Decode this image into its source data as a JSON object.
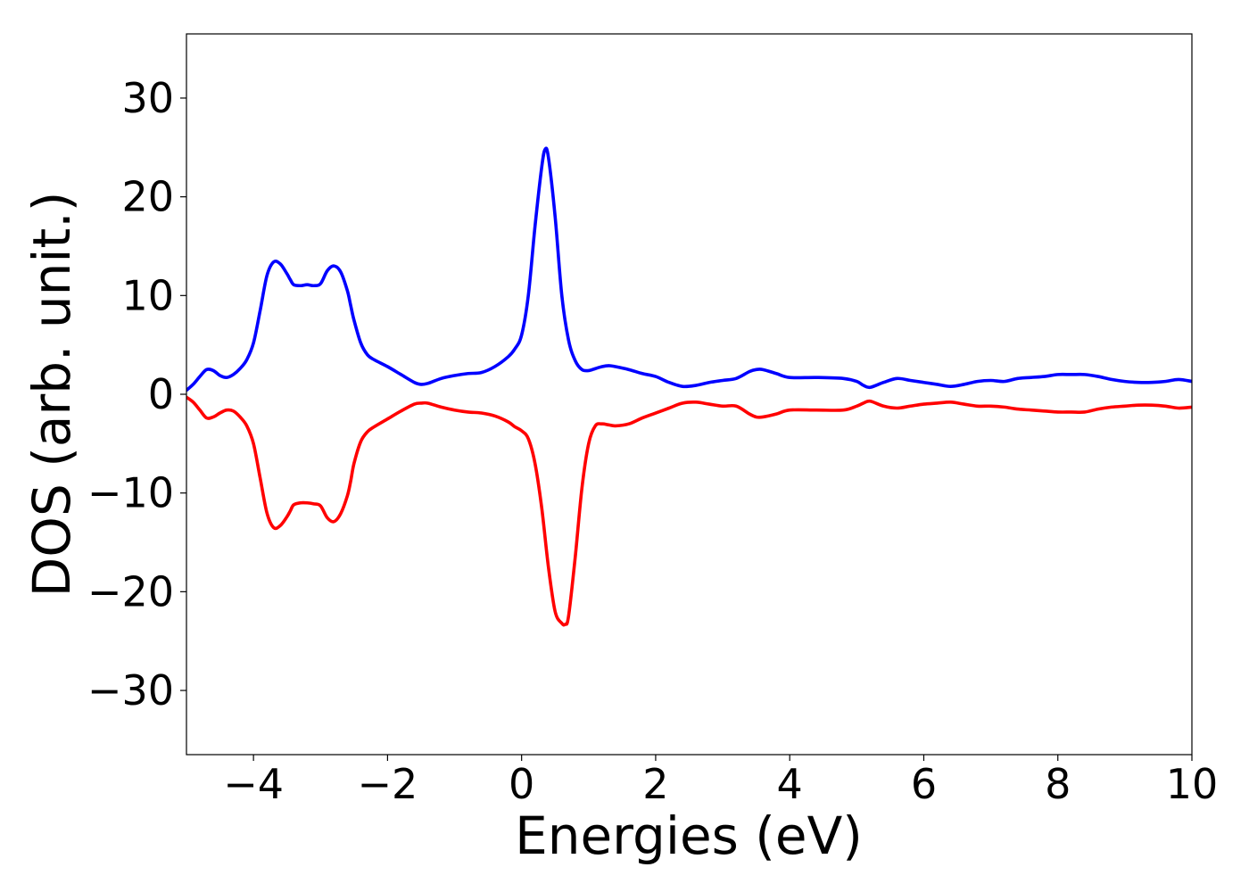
{
  "chart_data": {
    "type": "line",
    "title": "",
    "xlabel": "Energies (eV)",
    "ylabel": "DOS (arb. unit.)",
    "xlim": [
      -5,
      10
    ],
    "ylim": [
      -36.5,
      36.5
    ],
    "grid": false,
    "x_ticks": [
      -4,
      -2,
      0,
      2,
      4,
      6,
      8,
      10
    ],
    "x_tick_labels": [
      "−4",
      "−2",
      "0",
      "2",
      "4",
      "6",
      "8",
      "10"
    ],
    "y_ticks": [
      30,
      20,
      10,
      0,
      -10,
      -20,
      -30
    ],
    "y_tick_labels": [
      "30",
      "20",
      "10",
      "0",
      "−10",
      "−20",
      "−30"
    ],
    "series": [
      {
        "color": "#0000ff",
        "x": [
          -5.0,
          -4.9,
          -4.8,
          -4.7,
          -4.6,
          -4.5,
          -4.4,
          -4.3,
          -4.2,
          -4.1,
          -4.0,
          -3.9,
          -3.8,
          -3.7,
          -3.6,
          -3.5,
          -3.45,
          -3.4,
          -3.3,
          -3.2,
          -3.1,
          -3.0,
          -2.9,
          -2.8,
          -2.7,
          -2.6,
          -2.55,
          -2.5,
          -2.4,
          -2.3,
          -2.2,
          -2.0,
          -1.8,
          -1.6,
          -1.5,
          -1.4,
          -1.2,
          -1.0,
          -0.8,
          -0.6,
          -0.4,
          -0.2,
          -0.1,
          0.0,
          0.1,
          0.2,
          0.3,
          0.35,
          0.4,
          0.5,
          0.6,
          0.7,
          0.8,
          0.9,
          1.0,
          1.1,
          1.2,
          1.3,
          1.4,
          1.6,
          1.8,
          2.0,
          2.2,
          2.4,
          2.6,
          2.8,
          3.0,
          3.2,
          3.4,
          3.5,
          3.6,
          3.8,
          4.0,
          4.4,
          4.8,
          5.0,
          5.1,
          5.2,
          5.4,
          5.6,
          5.8,
          6.0,
          6.2,
          6.4,
          6.6,
          6.8,
          7.0,
          7.2,
          7.4,
          7.6,
          7.8,
          8.0,
          8.2,
          8.4,
          8.6,
          8.8,
          9.0,
          9.2,
          9.4,
          9.6,
          9.8,
          10.0
        ],
        "y": [
          0.4,
          1.0,
          1.8,
          2.5,
          2.4,
          1.9,
          1.7,
          2.0,
          2.6,
          3.5,
          5.2,
          8.5,
          12.0,
          13.4,
          13.2,
          12.2,
          11.6,
          11.1,
          11.0,
          11.1,
          11.0,
          11.2,
          12.5,
          13.0,
          12.4,
          10.5,
          9.0,
          7.5,
          5.2,
          4.0,
          3.5,
          2.8,
          2.0,
          1.2,
          1.0,
          1.1,
          1.6,
          1.9,
          2.1,
          2.2,
          2.8,
          3.8,
          4.6,
          6.0,
          10.0,
          17.0,
          23.0,
          24.8,
          24.0,
          18.0,
          10.0,
          5.5,
          3.4,
          2.5,
          2.4,
          2.6,
          2.8,
          2.9,
          2.8,
          2.5,
          2.1,
          1.8,
          1.2,
          0.8,
          0.9,
          1.2,
          1.4,
          1.6,
          2.3,
          2.5,
          2.5,
          2.1,
          1.7,
          1.7,
          1.6,
          1.3,
          0.9,
          0.7,
          1.2,
          1.6,
          1.4,
          1.2,
          1.0,
          0.8,
          1.0,
          1.3,
          1.4,
          1.3,
          1.6,
          1.7,
          1.8,
          2.0,
          2.0,
          2.0,
          1.8,
          1.5,
          1.3,
          1.2,
          1.2,
          1.3,
          1.5,
          1.3
        ]
      },
      {
        "color": "#ff0000",
        "x": [
          -5.0,
          -4.9,
          -4.8,
          -4.7,
          -4.6,
          -4.5,
          -4.4,
          -4.3,
          -4.2,
          -4.1,
          -4.0,
          -3.9,
          -3.8,
          -3.7,
          -3.6,
          -3.5,
          -3.45,
          -3.4,
          -3.3,
          -3.2,
          -3.1,
          -3.0,
          -2.9,
          -2.8,
          -2.7,
          -2.6,
          -2.55,
          -2.5,
          -2.4,
          -2.3,
          -2.2,
          -2.0,
          -1.8,
          -1.6,
          -1.5,
          -1.4,
          -1.2,
          -1.0,
          -0.8,
          -0.6,
          -0.4,
          -0.2,
          -0.1,
          0.0,
          0.1,
          0.2,
          0.3,
          0.4,
          0.5,
          0.6,
          0.65,
          0.7,
          0.8,
          0.9,
          1.0,
          1.1,
          1.2,
          1.3,
          1.4,
          1.6,
          1.8,
          2.0,
          2.2,
          2.4,
          2.6,
          2.8,
          3.0,
          3.2,
          3.4,
          3.5,
          3.6,
          3.8,
          4.0,
          4.4,
          4.8,
          5.0,
          5.1,
          5.2,
          5.4,
          5.6,
          5.8,
          6.0,
          6.2,
          6.4,
          6.6,
          6.8,
          7.0,
          7.2,
          7.4,
          7.6,
          7.8,
          8.0,
          8.2,
          8.4,
          8.6,
          8.8,
          9.0,
          9.2,
          9.4,
          9.6,
          9.8,
          10.0
        ],
        "y": [
          -0.3,
          -0.8,
          -1.6,
          -2.4,
          -2.3,
          -1.9,
          -1.6,
          -1.7,
          -2.3,
          -3.2,
          -5.0,
          -8.5,
          -12.0,
          -13.5,
          -13.3,
          -12.4,
          -11.8,
          -11.2,
          -11.0,
          -11.0,
          -11.1,
          -11.3,
          -12.5,
          -12.9,
          -12.1,
          -10.3,
          -8.8,
          -7.0,
          -4.8,
          -3.8,
          -3.3,
          -2.5,
          -1.7,
          -1.0,
          -0.9,
          -0.9,
          -1.3,
          -1.6,
          -1.8,
          -1.9,
          -2.2,
          -2.8,
          -3.3,
          -3.7,
          -4.5,
          -7.0,
          -11.5,
          -17.5,
          -22.0,
          -23.2,
          -23.3,
          -22.5,
          -16.5,
          -9.5,
          -5.0,
          -3.2,
          -3.0,
          -3.1,
          -3.2,
          -3.0,
          -2.4,
          -1.9,
          -1.4,
          -0.9,
          -0.8,
          -1.0,
          -1.2,
          -1.2,
          -2.0,
          -2.3,
          -2.3,
          -2.0,
          -1.6,
          -1.6,
          -1.6,
          -1.2,
          -0.9,
          -0.7,
          -1.2,
          -1.4,
          -1.2,
          -1.0,
          -0.9,
          -0.8,
          -1.0,
          -1.2,
          -1.2,
          -1.3,
          -1.5,
          -1.6,
          -1.7,
          -1.8,
          -1.8,
          -1.8,
          -1.5,
          -1.3,
          -1.2,
          -1.1,
          -1.1,
          -1.2,
          -1.4,
          -1.3
        ]
      }
    ]
  }
}
